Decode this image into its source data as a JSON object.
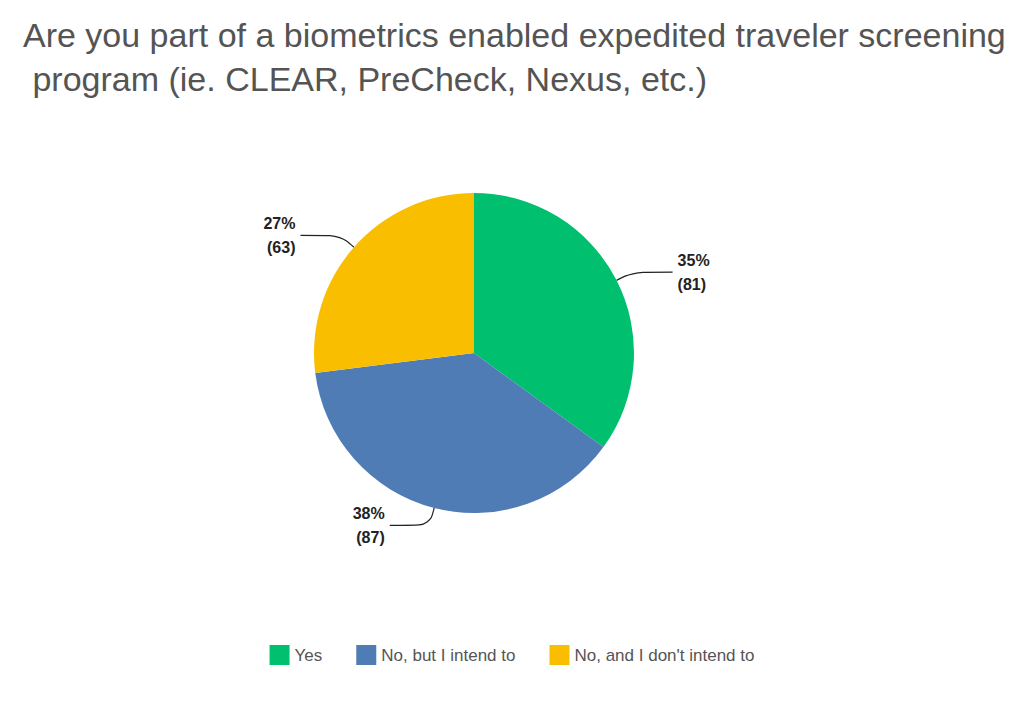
{
  "chart_data": {
    "type": "pie",
    "title": "Are you part of a biometrics enabled expedited traveler screening program (ie. CLEAR, PreCheck, Nexus, etc.)",
    "categories": [
      "Yes",
      "No, but I intend to",
      "No, and I don't intend to"
    ],
    "values": [
      35,
      38,
      27
    ],
    "value_labels": [
      "35%",
      "38%",
      "27%"
    ],
    "counts": [
      81,
      87,
      63
    ],
    "colors": [
      "#00bf6f",
      "#507cb6",
      "#f9be00"
    ],
    "data_labels": true,
    "legend": "bottom"
  }
}
